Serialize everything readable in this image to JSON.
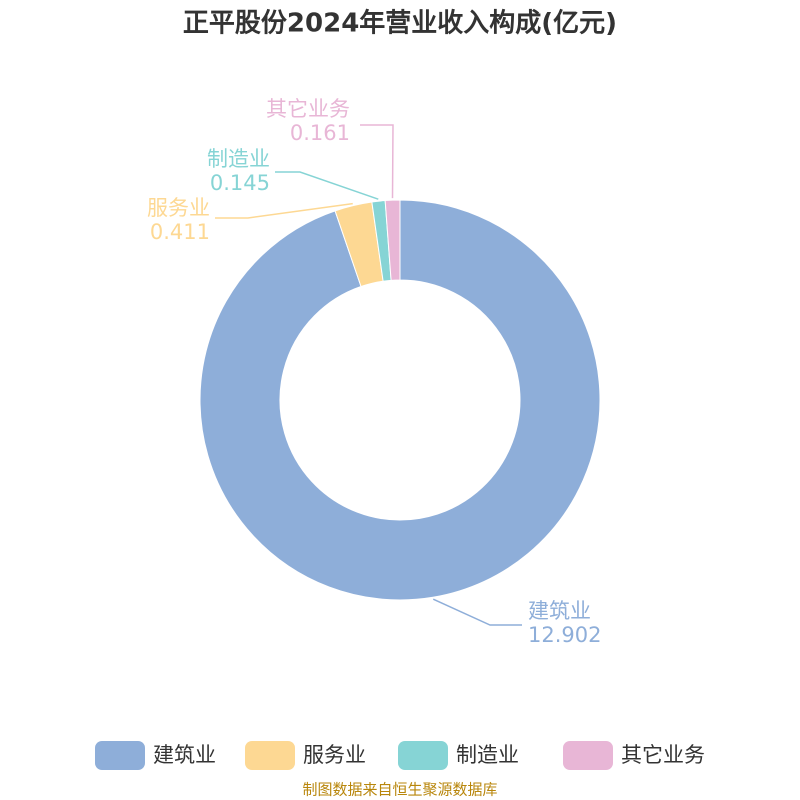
{
  "chart_data": {
    "type": "donut",
    "title": "正平股份2024年营业收入构成(亿元)",
    "categories": [
      "建筑业",
      "服务业",
      "制造业",
      "其它业务"
    ],
    "values": [
      12.902,
      0.411,
      0.145,
      0.161
    ],
    "colors": [
      "#8eaed9",
      "#fdd893",
      "#86d4d5",
      "#e8b6d6"
    ],
    "legend": "bottom",
    "source": "制图数据来自恒生聚源数据库"
  }
}
